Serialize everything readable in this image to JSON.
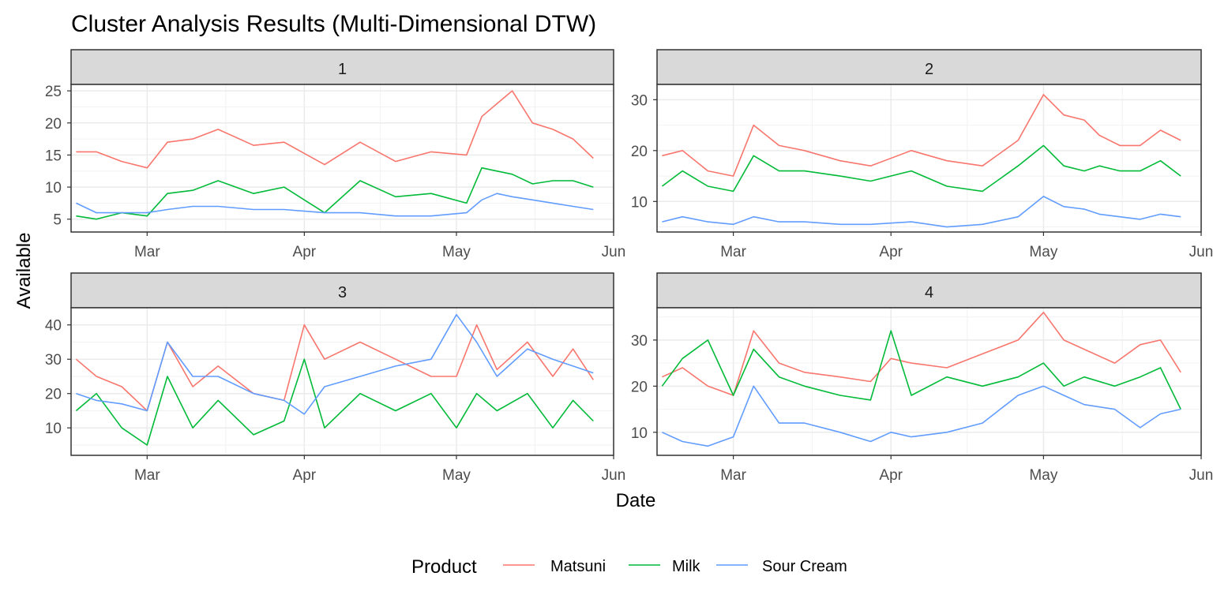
{
  "chart_data": {
    "type": "line",
    "title": "Cluster Analysis Results (Multi-Dimensional DTW)",
    "xlabel": "Date",
    "ylabel": "Available",
    "x_axis": {
      "type": "date",
      "range": [
        "2024-02-15",
        "2024-06-01"
      ],
      "ticks": [
        {
          "date": "2024-03-01",
          "label": "Mar"
        },
        {
          "date": "2024-04-01",
          "label": "Apr"
        },
        {
          "date": "2024-05-01",
          "label": "May"
        },
        {
          "date": "2024-06-01",
          "label": "Jun"
        }
      ]
    },
    "grid": true,
    "legend": {
      "title": "Product",
      "position": "bottom",
      "entries": [
        {
          "label": "Matsuni",
          "color": "#F8766D"
        },
        {
          "label": "Milk",
          "color": "#00BA38"
        },
        {
          "label": "Sour Cream",
          "color": "#619CFF"
        }
      ]
    },
    "facets": [
      {
        "label": "1",
        "ylim": [
          3,
          26
        ],
        "yticks": [
          5,
          10,
          15,
          20,
          25
        ],
        "series": [
          {
            "name": "Matsuni",
            "x": [
              "2024-02-16",
              "2024-02-20",
              "2024-02-25",
              "2024-03-01",
              "2024-03-05",
              "2024-03-10",
              "2024-03-15",
              "2024-03-22",
              "2024-03-28",
              "2024-04-05",
              "2024-04-12",
              "2024-04-19",
              "2024-04-26",
              "2024-05-03",
              "2024-05-06",
              "2024-05-09",
              "2024-05-12",
              "2024-05-16",
              "2024-05-20",
              "2024-05-24",
              "2024-05-28"
            ],
            "y": [
              15.5,
              15.5,
              14,
              13,
              17,
              17.5,
              19,
              16.5,
              17,
              13.5,
              17,
              14,
              15.5,
              15,
              21,
              23,
              25,
              20,
              19,
              17.5,
              14.5
            ]
          },
          {
            "name": "Milk",
            "x": [
              "2024-02-16",
              "2024-02-20",
              "2024-02-25",
              "2024-03-01",
              "2024-03-05",
              "2024-03-10",
              "2024-03-15",
              "2024-03-22",
              "2024-03-28",
              "2024-04-05",
              "2024-04-12",
              "2024-04-19",
              "2024-04-26",
              "2024-05-03",
              "2024-05-06",
              "2024-05-09",
              "2024-05-12",
              "2024-05-16",
              "2024-05-20",
              "2024-05-24",
              "2024-05-28"
            ],
            "y": [
              5.5,
              5,
              6,
              5.5,
              9,
              9.5,
              11,
              9,
              10,
              6,
              11,
              8.5,
              9,
              7.5,
              13,
              12.5,
              12,
              10.5,
              11,
              11,
              10
            ]
          },
          {
            "name": "Sour Cream",
            "x": [
              "2024-02-16",
              "2024-02-20",
              "2024-02-25",
              "2024-03-01",
              "2024-03-05",
              "2024-03-10",
              "2024-03-15",
              "2024-03-22",
              "2024-03-28",
              "2024-04-05",
              "2024-04-12",
              "2024-04-19",
              "2024-04-26",
              "2024-05-03",
              "2024-05-06",
              "2024-05-09",
              "2024-05-12",
              "2024-05-16",
              "2024-05-20",
              "2024-05-24",
              "2024-05-28"
            ],
            "y": [
              7.5,
              6,
              6,
              6,
              6.5,
              7,
              7,
              6.5,
              6.5,
              6,
              6,
              5.5,
              5.5,
              6,
              8,
              9,
              8.5,
              8,
              7.5,
              7,
              6.5
            ]
          }
        ]
      },
      {
        "label": "2",
        "ylim": [
          4,
          33
        ],
        "yticks": [
          10,
          20,
          30
        ],
        "series": [
          {
            "name": "Matsuni",
            "x": [
              "2024-02-16",
              "2024-02-20",
              "2024-02-25",
              "2024-03-01",
              "2024-03-05",
              "2024-03-10",
              "2024-03-15",
              "2024-03-22",
              "2024-03-28",
              "2024-04-05",
              "2024-04-12",
              "2024-04-19",
              "2024-04-26",
              "2024-05-01",
              "2024-05-05",
              "2024-05-09",
              "2024-05-12",
              "2024-05-16",
              "2024-05-20",
              "2024-05-24",
              "2024-05-28"
            ],
            "y": [
              19,
              20,
              16,
              15,
              25,
              21,
              20,
              18,
              17,
              20,
              18,
              17,
              22,
              31,
              27,
              26,
              23,
              21,
              21,
              24,
              22
            ]
          },
          {
            "name": "Milk",
            "x": [
              "2024-02-16",
              "2024-02-20",
              "2024-02-25",
              "2024-03-01",
              "2024-03-05",
              "2024-03-10",
              "2024-03-15",
              "2024-03-22",
              "2024-03-28",
              "2024-04-05",
              "2024-04-12",
              "2024-04-19",
              "2024-04-26",
              "2024-05-01",
              "2024-05-05",
              "2024-05-09",
              "2024-05-12",
              "2024-05-16",
              "2024-05-20",
              "2024-05-24",
              "2024-05-28"
            ],
            "y": [
              13,
              16,
              13,
              12,
              19,
              16,
              16,
              15,
              14,
              16,
              13,
              12,
              17,
              21,
              17,
              16,
              17,
              16,
              16,
              18,
              15
            ]
          },
          {
            "name": "Sour Cream",
            "x": [
              "2024-02-16",
              "2024-02-20",
              "2024-02-25",
              "2024-03-01",
              "2024-03-05",
              "2024-03-10",
              "2024-03-15",
              "2024-03-22",
              "2024-03-28",
              "2024-04-05",
              "2024-04-12",
              "2024-04-19",
              "2024-04-26",
              "2024-05-01",
              "2024-05-05",
              "2024-05-09",
              "2024-05-12",
              "2024-05-16",
              "2024-05-20",
              "2024-05-24",
              "2024-05-28"
            ],
            "y": [
              6,
              7,
              6,
              5.5,
              7,
              6,
              6,
              5.5,
              5.5,
              6,
              5,
              5.5,
              7,
              11,
              9,
              8.5,
              7.5,
              7,
              6.5,
              7.5,
              7
            ]
          }
        ]
      },
      {
        "label": "3",
        "ylim": [
          2,
          45
        ],
        "yticks": [
          10,
          20,
          30,
          40
        ],
        "series": [
          {
            "name": "Matsuni",
            "x": [
              "2024-02-16",
              "2024-02-20",
              "2024-02-25",
              "2024-03-01",
              "2024-03-05",
              "2024-03-10",
              "2024-03-15",
              "2024-03-22",
              "2024-03-28",
              "2024-04-01",
              "2024-04-05",
              "2024-04-12",
              "2024-04-19",
              "2024-04-26",
              "2024-05-01",
              "2024-05-05",
              "2024-05-09",
              "2024-05-15",
              "2024-05-20",
              "2024-05-24",
              "2024-05-28"
            ],
            "y": [
              30,
              25,
              22,
              15,
              35,
              22,
              28,
              20,
              18,
              40,
              30,
              35,
              30,
              25,
              25,
              40,
              27,
              35,
              25,
              33,
              24
            ]
          },
          {
            "name": "Milk",
            "x": [
              "2024-02-16",
              "2024-02-20",
              "2024-02-25",
              "2024-03-01",
              "2024-03-05",
              "2024-03-10",
              "2024-03-15",
              "2024-03-22",
              "2024-03-28",
              "2024-04-01",
              "2024-04-05",
              "2024-04-12",
              "2024-04-19",
              "2024-04-26",
              "2024-05-01",
              "2024-05-05",
              "2024-05-09",
              "2024-05-15",
              "2024-05-20",
              "2024-05-24",
              "2024-05-28"
            ],
            "y": [
              15,
              20,
              10,
              5,
              25,
              10,
              18,
              8,
              12,
              30,
              10,
              20,
              15,
              20,
              10,
              20,
              15,
              20,
              10,
              18,
              12
            ]
          },
          {
            "name": "Sour Cream",
            "x": [
              "2024-02-16",
              "2024-02-20",
              "2024-02-25",
              "2024-03-01",
              "2024-03-05",
              "2024-03-10",
              "2024-03-15",
              "2024-03-22",
              "2024-03-28",
              "2024-04-01",
              "2024-04-05",
              "2024-04-12",
              "2024-04-19",
              "2024-04-26",
              "2024-05-01",
              "2024-05-05",
              "2024-05-09",
              "2024-05-15",
              "2024-05-20",
              "2024-05-24",
              "2024-05-28"
            ],
            "y": [
              20,
              18,
              17,
              15,
              35,
              25,
              25,
              20,
              18,
              14,
              22,
              25,
              28,
              30,
              43,
              35,
              25,
              33,
              30,
              28,
              26
            ]
          }
        ]
      },
      {
        "label": "4",
        "ylim": [
          5,
          37
        ],
        "yticks": [
          10,
          20,
          30
        ],
        "series": [
          {
            "name": "Matsuni",
            "x": [
              "2024-02-16",
              "2024-02-20",
              "2024-02-25",
              "2024-03-01",
              "2024-03-05",
              "2024-03-10",
              "2024-03-15",
              "2024-03-22",
              "2024-03-28",
              "2024-04-01",
              "2024-04-05",
              "2024-04-12",
              "2024-04-19",
              "2024-04-26",
              "2024-05-01",
              "2024-05-05",
              "2024-05-09",
              "2024-05-15",
              "2024-05-20",
              "2024-05-24",
              "2024-05-28"
            ],
            "y": [
              22,
              24,
              20,
              18,
              32,
              25,
              23,
              22,
              21,
              26,
              25,
              24,
              27,
              30,
              36,
              30,
              28,
              25,
              29,
              30,
              23
            ]
          },
          {
            "name": "Milk",
            "x": [
              "2024-02-16",
              "2024-02-20",
              "2024-02-25",
              "2024-03-01",
              "2024-03-05",
              "2024-03-10",
              "2024-03-15",
              "2024-03-22",
              "2024-03-28",
              "2024-04-01",
              "2024-04-05",
              "2024-04-12",
              "2024-04-19",
              "2024-04-26",
              "2024-05-01",
              "2024-05-05",
              "2024-05-09",
              "2024-05-15",
              "2024-05-20",
              "2024-05-24",
              "2024-05-28"
            ],
            "y": [
              20,
              26,
              30,
              18,
              28,
              22,
              20,
              18,
              17,
              32,
              18,
              22,
              20,
              22,
              25,
              20,
              22,
              20,
              22,
              24,
              15
            ]
          },
          {
            "name": "Sour Cream",
            "x": [
              "2024-02-16",
              "2024-02-20",
              "2024-02-25",
              "2024-03-01",
              "2024-03-05",
              "2024-03-10",
              "2024-03-15",
              "2024-03-22",
              "2024-03-28",
              "2024-04-01",
              "2024-04-05",
              "2024-04-12",
              "2024-04-19",
              "2024-04-26",
              "2024-05-01",
              "2024-05-05",
              "2024-05-09",
              "2024-05-15",
              "2024-05-20",
              "2024-05-24",
              "2024-05-28"
            ],
            "y": [
              10,
              8,
              7,
              9,
              20,
              12,
              12,
              10,
              8,
              10,
              9,
              10,
              12,
              18,
              20,
              18,
              16,
              15,
              11,
              14,
              15
            ]
          }
        ]
      }
    ]
  }
}
